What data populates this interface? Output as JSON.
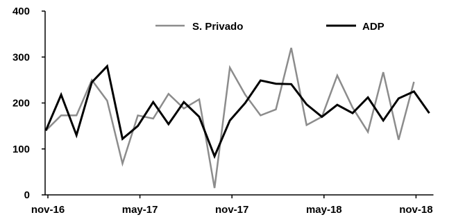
{
  "chart_data": {
    "type": "line",
    "title": "",
    "xlabel": "",
    "ylabel": "",
    "ylim": [
      0,
      400
    ],
    "yticks": [
      0,
      100,
      200,
      300,
      400
    ],
    "x_tick_labels": [
      "nov-16",
      "may-17",
      "nov-17",
      "may-18",
      "nov-18"
    ],
    "x_tick_month_index": [
      0,
      6,
      12,
      18,
      24
    ],
    "grid": false,
    "legend": "top",
    "series": [
      {
        "name": "S. Privado",
        "color": "#8c8c8c",
        "values": [
          140,
          173,
          173,
          250,
          205,
          68,
          173,
          166,
          220,
          188,
          208,
          15,
          277,
          218,
          173,
          186,
          320,
          152,
          170,
          260,
          190,
          137,
          267,
          120,
          246
        ]
      },
      {
        "name": "ADP",
        "color": "#000000",
        "values": [
          140,
          218,
          130,
          245,
          280,
          122,
          150,
          202,
          154,
          202,
          170,
          84,
          162,
          200,
          249,
          242,
          241,
          197,
          170,
          196,
          178,
          212,
          162,
          210,
          225,
          178
        ]
      }
    ]
  }
}
